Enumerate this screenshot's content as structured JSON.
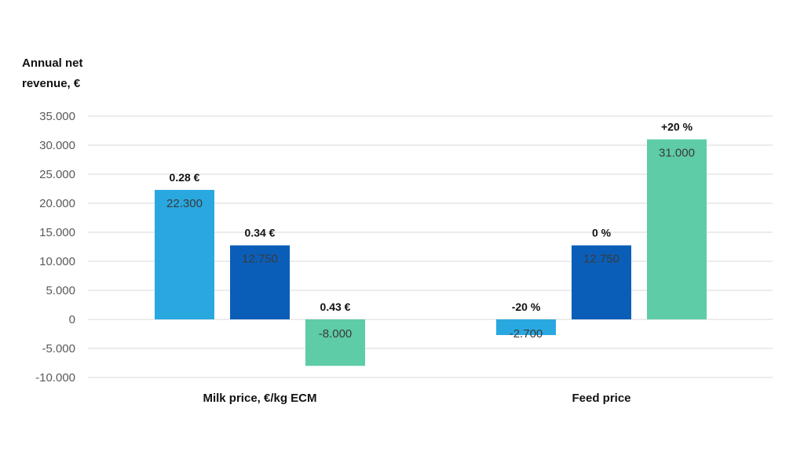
{
  "chart_data": {
    "type": "bar",
    "ylabel_lines": [
      "Annual net",
      "revenue, €"
    ],
    "ylim": [
      -10000,
      35000
    ],
    "yticks": [
      35000,
      30000,
      25000,
      20000,
      15000,
      10000,
      5000,
      0,
      -5000,
      -10000
    ],
    "ytick_labels": [
      "35.000",
      "30.000",
      "25.000",
      "20.000",
      "15.000",
      "10.000",
      "5.000",
      "0",
      "-5.000",
      "-10.000"
    ],
    "grid": true,
    "categories": [
      "Milk price, €/kg ECM",
      "Feed price"
    ],
    "colors": [
      "#29a8e0",
      "#0b5eb8",
      "#5ecca6"
    ],
    "groups": [
      {
        "category": "Milk price, €/kg ECM",
        "bars": [
          {
            "label": "0.28 €",
            "value": 22300,
            "value_label": "22.300"
          },
          {
            "label": "0.34 €",
            "value": 12750,
            "value_label": "12.750"
          },
          {
            "label": "0.43 €",
            "value": -8000,
            "value_label": "-8.000"
          }
        ]
      },
      {
        "category": "Feed price",
        "bars": [
          {
            "label": "-20 %",
            "value": -2700,
            "value_label": "-2.700"
          },
          {
            "label": "0 %",
            "value": 12750,
            "value_label": "12.750"
          },
          {
            "label": "+20 %",
            "value": 31000,
            "value_label": "31.000"
          }
        ]
      }
    ]
  }
}
